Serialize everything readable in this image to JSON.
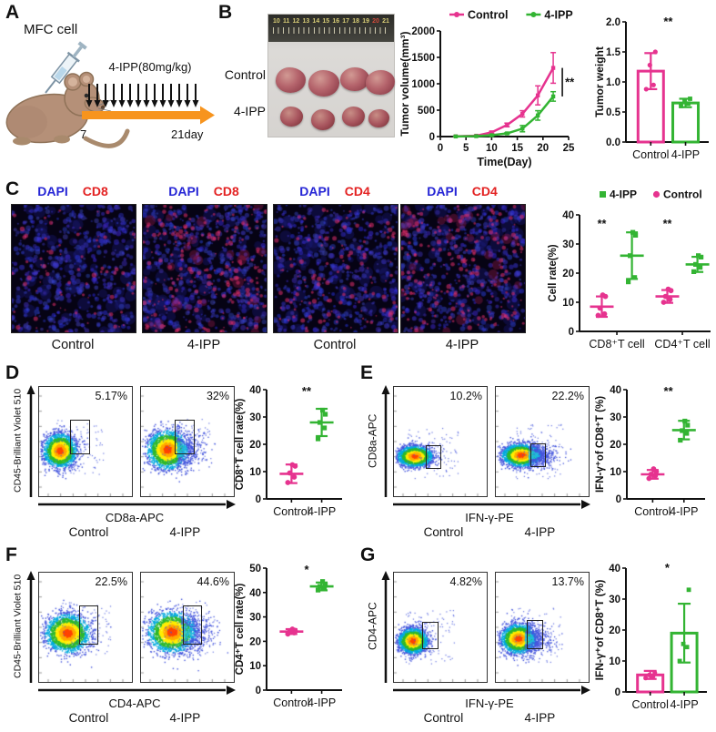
{
  "colors": {
    "pink": "#e6338f",
    "green": "#33b433",
    "orange": "#f7941e",
    "dapi_blue": "#2525d5",
    "stain_red": "#e32222"
  },
  "panels": {
    "A": {
      "label": "A",
      "cell_label": "MFC cell",
      "treatment": "4-IPP(80mg/kg)",
      "start": "7",
      "end": "21day"
    },
    "B": {
      "label": "B",
      "photo": {
        "ruler_numbers": [
          "10",
          "11",
          "12",
          "13",
          "14",
          "15",
          "16",
          "17",
          "18",
          "19",
          "20",
          "21"
        ],
        "rows": [
          {
            "name": "Control"
          },
          {
            "name": "4-IPP"
          }
        ]
      }
    },
    "C": {
      "label": "C",
      "images": [
        {
          "stain1": "DAPI",
          "stain2": "CD8",
          "condition": "Control",
          "red_level": "low"
        },
        {
          "stain1": "DAPI",
          "stain2": "CD8",
          "condition": "4-IPP",
          "red_level": "high"
        },
        {
          "stain1": "DAPI",
          "stain2": "CD4",
          "condition": "Control",
          "red_level": "medium"
        },
        {
          "stain1": "DAPI",
          "stain2": "CD4",
          "condition": "4-IPP",
          "red_level": "high"
        }
      ]
    },
    "D": {
      "label": "D",
      "ylabel": "CD45-Brilliant Violet 510",
      "xlabel": "CD8a-APC",
      "plots": [
        {
          "condition": "Control",
          "percent": "5.17%"
        },
        {
          "condition": "4-IPP",
          "percent": "32%"
        }
      ]
    },
    "E": {
      "label": "E",
      "ylabel": "CD8a-APC",
      "xlabel": "IFN-γ-PE",
      "plots": [
        {
          "condition": "Control",
          "percent": "10.2%"
        },
        {
          "condition": "4-IPP",
          "percent": "22.2%"
        }
      ]
    },
    "F": {
      "label": "F",
      "ylabel": "CD45-Brilliant Violet 510",
      "xlabel": "CD4-APC",
      "plots": [
        {
          "condition": "Control",
          "percent": "22.5%"
        },
        {
          "condition": "4-IPP",
          "percent": "44.6%"
        }
      ]
    },
    "G": {
      "label": "G",
      "ylabel": "CD4-APC",
      "xlabel": "IFN-γ-PE",
      "plots": [
        {
          "condition": "Control",
          "percent": "4.82%"
        },
        {
          "condition": "4-IPP",
          "percent": "13.7%"
        }
      ]
    }
  },
  "chart_data": [
    {
      "id": "tumor_volume",
      "type": "line",
      "xlabel": "Time(Day)",
      "ylabel": "Tumor volume(mm³)",
      "xlim": [
        0,
        25
      ],
      "ylim": [
        0,
        2000
      ],
      "xticks": [
        0,
        5,
        10,
        15,
        20,
        25
      ],
      "yticks": [
        0,
        500,
        1000,
        1500,
        2000
      ],
      "x": [
        3,
        7,
        10,
        13,
        16,
        19,
        22
      ],
      "legend_position": "top",
      "significance": "**",
      "series": [
        {
          "name": "Control",
          "color_key": "pink",
          "values": [
            5,
            15,
            80,
            220,
            430,
            780,
            1300
          ],
          "errors": [
            8,
            10,
            20,
            35,
            60,
            180,
            290
          ]
        },
        {
          "name": "4-IPP",
          "color_key": "green",
          "values": [
            3,
            8,
            25,
            60,
            150,
            400,
            760
          ],
          "errors": [
            5,
            6,
            10,
            15,
            60,
            90,
            90
          ]
        }
      ]
    },
    {
      "id": "tumor_weight",
      "type": "bar",
      "ylabel": "Tumor weight",
      "ylim": [
        0,
        2
      ],
      "yticks": [
        "0.0",
        "0.5",
        "1.0",
        "1.5",
        "2.0"
      ],
      "significance": "**",
      "series": [
        {
          "name": "Control",
          "color_key": "pink",
          "value": 1.18,
          "error": 0.3,
          "points": [
            0.88,
            0.95,
            1.28,
            1.5
          ]
        },
        {
          "name": "4-IPP",
          "color_key": "green",
          "value": 0.65,
          "error": 0.07,
          "points": [
            0.6,
            0.64,
            0.68,
            0.72
          ]
        }
      ]
    },
    {
      "id": "cell_rate",
      "type": "scatter",
      "ylabel": "Cell rate(%)",
      "ylim": [
        0,
        40
      ],
      "yticks": [
        0,
        10,
        20,
        30,
        40
      ],
      "categories": [
        "CD8⁺T cell",
        "CD4⁺T cell"
      ],
      "significance": [
        "**",
        "**"
      ],
      "legend": [
        {
          "name": "4-IPP",
          "color_key": "green",
          "marker": "square"
        },
        {
          "name": "Control",
          "color_key": "pink",
          "marker": "circle"
        }
      ],
      "groups": [
        {
          "category": "CD8⁺T cell",
          "name": "Control",
          "color_key": "pink",
          "mean": 8.5,
          "err": 3.5,
          "points": [
            5.5,
            6,
            8,
            12,
            12.5
          ]
        },
        {
          "category": "CD8⁺T cell",
          "name": "4-IPP",
          "color_key": "green",
          "mean": 26,
          "err": 8,
          "points": [
            17,
            18.5,
            26,
            33,
            34
          ]
        },
        {
          "category": "CD4⁺T cell",
          "name": "Control",
          "color_key": "pink",
          "mean": 12,
          "err": 2.2,
          "points": [
            10,
            11,
            12,
            14,
            14.5
          ]
        },
        {
          "category": "CD4⁺T cell",
          "name": "4-IPP",
          "color_key": "green",
          "mean": 23,
          "err": 2.6,
          "points": [
            20.5,
            22,
            23,
            25.5,
            26
          ]
        }
      ]
    },
    {
      "id": "cd8_rate",
      "type": "scatter",
      "ylabel": "CD8⁺T cell rate(%)",
      "ylim": [
        0,
        40
      ],
      "yticks": [
        0,
        10,
        20,
        30,
        40
      ],
      "significance": "**",
      "groups": [
        {
          "name": "Control",
          "color_key": "pink",
          "mean": 9.2,
          "err": 3.4,
          "points": [
            6,
            8,
            9.5,
            12,
            12.5
          ]
        },
        {
          "name": "4-IPP",
          "color_key": "green",
          "mean": 28,
          "err": 5,
          "points": [
            22,
            26,
            28,
            31,
            32.5
          ]
        }
      ]
    },
    {
      "id": "ifng_cd8",
      "type": "scatter",
      "ylabel": "IFN-γ⁺of CD8⁺T (%)",
      "ylim": [
        0,
        40
      ],
      "yticks": [
        0,
        10,
        20,
        30,
        40
      ],
      "significance": "**",
      "groups": [
        {
          "name": "Control",
          "color_key": "pink",
          "mean": 9,
          "err": 1.6,
          "points": [
            7.5,
            8.5,
            9,
            10,
            11
          ]
        },
        {
          "name": "4-IPP",
          "color_key": "green",
          "mean": 25.2,
          "err": 3.4,
          "points": [
            21.5,
            24,
            25,
            27,
            28.5
          ]
        }
      ]
    },
    {
      "id": "cd4_rate",
      "type": "scatter",
      "ylabel": "CD4⁺T cell rate(%)",
      "ylim": [
        0,
        50
      ],
      "yticks": [
        0,
        10,
        20,
        30,
        40,
        50
      ],
      "significance": "*",
      "groups": [
        {
          "name": "Control",
          "color_key": "pink",
          "mean": 24,
          "err": 1,
          "points": [
            23,
            23.5,
            24,
            24.5,
            25
          ]
        },
        {
          "name": "4-IPP",
          "color_key": "green",
          "mean": 42.5,
          "err": 1.6,
          "points": [
            41,
            42,
            42.5,
            43,
            44.5
          ]
        }
      ]
    },
    {
      "id": "ifng_cd4",
      "type": "bar",
      "ylabel": "IFN-γ⁺of CD8⁺T (%)",
      "ylim": [
        0,
        40
      ],
      "yticks": [
        "0",
        "10",
        "20",
        "30",
        "40"
      ],
      "significance": "*",
      "series": [
        {
          "name": "Control",
          "color_key": "pink",
          "value": 5.5,
          "error": 1.3,
          "points": [
            4.5,
            5,
            5.5,
            6.2
          ]
        },
        {
          "name": "4-IPP",
          "color_key": "green",
          "value": 19,
          "error": 9.5,
          "points": [
            10,
            14.5,
            15.5,
            33
          ]
        }
      ]
    }
  ]
}
